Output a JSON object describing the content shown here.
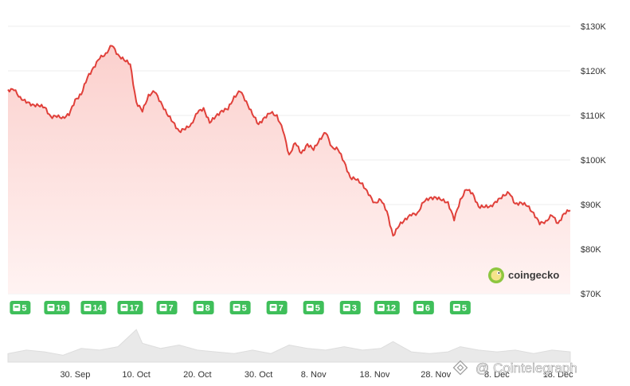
{
  "colors": {
    "line": "#e0403a",
    "area_top": "#fbd0cd",
    "area_bottom": "#fff3f2",
    "badge": "#3fbf5a",
    "grid": "#eeeeee",
    "volume": "#e9e9e9"
  },
  "branding": {
    "logo_icon": "gecko-icon",
    "logo_text": "coingecko",
    "watermark_icon": "binance-icon",
    "watermark_text": "@ Cointelegraph"
  },
  "chart_data": {
    "type": "area",
    "y_tick_labels": [
      "$130K",
      "$120K",
      "$110K",
      "$100K",
      "$90K",
      "$80K",
      "$70K"
    ],
    "y_ticks": [
      130000,
      120000,
      110000,
      100000,
      90000,
      80000,
      70000
    ],
    "ylim": [
      70000,
      130000
    ],
    "x_tick_labels": [
      "30. Sep",
      "10. Oct",
      "20. Oct",
      "30. Oct",
      "8. Nov",
      "18. Nov",
      "28. Nov",
      "8. Dec",
      "18. Dec"
    ],
    "x_ticks": [
      "2025-09-30",
      "2025-10-10",
      "2025-10-20",
      "2025-10-30",
      "2025-11-08",
      "2025-11-18",
      "2025-11-28",
      "2025-12-08",
      "2025-12-18"
    ],
    "xlim": [
      "2025-09-19",
      "2025-12-20"
    ],
    "grid": true,
    "series": [
      {
        "x": [
          "2025-09-19",
          "2025-09-20",
          "2025-09-21",
          "2025-09-22",
          "2025-09-23",
          "2025-09-24",
          "2025-09-25",
          "2025-09-26",
          "2025-09-27",
          "2025-09-28",
          "2025-09-29",
          "2025-09-30",
          "2025-10-01",
          "2025-10-02",
          "2025-10-03",
          "2025-10-04",
          "2025-10-05",
          "2025-10-06",
          "2025-10-07",
          "2025-10-08",
          "2025-10-09",
          "2025-10-10",
          "2025-10-11",
          "2025-10-12",
          "2025-10-13",
          "2025-10-14",
          "2025-10-15",
          "2025-10-16",
          "2025-10-17",
          "2025-10-18",
          "2025-10-19",
          "2025-10-20",
          "2025-10-21",
          "2025-10-22",
          "2025-10-23",
          "2025-10-24",
          "2025-10-25",
          "2025-10-26",
          "2025-10-27",
          "2025-10-28",
          "2025-10-29",
          "2025-10-30",
          "2025-10-31",
          "2025-11-01",
          "2025-11-02",
          "2025-11-03",
          "2025-11-04",
          "2025-11-05",
          "2025-11-06",
          "2025-11-07",
          "2025-11-08",
          "2025-11-09",
          "2025-11-10",
          "2025-11-11",
          "2025-11-12",
          "2025-11-13",
          "2025-11-14",
          "2025-11-15",
          "2025-11-16",
          "2025-11-17",
          "2025-11-18",
          "2025-11-19",
          "2025-11-20",
          "2025-11-21",
          "2025-11-22",
          "2025-11-23",
          "2025-11-24",
          "2025-11-25",
          "2025-11-26",
          "2025-11-27",
          "2025-11-28",
          "2025-11-29",
          "2025-11-30",
          "2025-12-01",
          "2025-12-02",
          "2025-12-03",
          "2025-12-04",
          "2025-12-05",
          "2025-12-06",
          "2025-12-07",
          "2025-12-08",
          "2025-12-09",
          "2025-12-10",
          "2025-12-11",
          "2025-12-12",
          "2025-12-13",
          "2025-12-14",
          "2025-12-15",
          "2025-12-16",
          "2025-12-17",
          "2025-12-18",
          "2025-12-19",
          "2025-12-20"
        ],
        "y": [
          115800,
          115600,
          114200,
          112800,
          112500,
          112200,
          111800,
          109800,
          109600,
          109700,
          110000,
          113600,
          114700,
          118500,
          120800,
          122700,
          124000,
          125600,
          123700,
          122400,
          121500,
          113000,
          110800,
          114700,
          115200,
          113100,
          110300,
          108500,
          106500,
          106800,
          108200,
          110500,
          111700,
          108300,
          109800,
          111100,
          111300,
          114300,
          115300,
          113200,
          110200,
          108000,
          109600,
          110500,
          110100,
          106500,
          101200,
          103800,
          101500,
          103600,
          102200,
          104800,
          106000,
          103000,
          102300,
          99600,
          96100,
          95500,
          94800,
          92100,
          90500,
          91000,
          88500,
          83000,
          85200,
          86900,
          87500,
          88200,
          90500,
          91500,
          91600,
          90900,
          90600,
          86400,
          91200,
          93300,
          92600,
          89500,
          89400,
          89800,
          90500,
          92200,
          92500,
          90200,
          90400,
          89600,
          88200,
          85500,
          86400,
          87500,
          85800,
          88000,
          88700
        ]
      }
    ],
    "event_badges": [
      {
        "x": "2025-09-21",
        "count": "5"
      },
      {
        "x": "2025-09-27",
        "count": "19"
      },
      {
        "x": "2025-10-03",
        "count": "14"
      },
      {
        "x": "2025-10-09",
        "count": "17"
      },
      {
        "x": "2025-10-15",
        "count": "7"
      },
      {
        "x": "2025-10-21",
        "count": "8"
      },
      {
        "x": "2025-10-27",
        "count": "5"
      },
      {
        "x": "2025-11-02",
        "count": "7"
      },
      {
        "x": "2025-11-08",
        "count": "5"
      },
      {
        "x": "2025-11-14",
        "count": "3"
      },
      {
        "x": "2025-11-20",
        "count": "12"
      },
      {
        "x": "2025-11-26",
        "count": "6"
      },
      {
        "x": "2025-12-02",
        "count": "5"
      }
    ],
    "volume": [
      {
        "x": "2025-09-19",
        "v": 0.25
      },
      {
        "x": "2025-09-22",
        "v": 0.35
      },
      {
        "x": "2025-09-25",
        "v": 0.3
      },
      {
        "x": "2025-09-28",
        "v": 0.2
      },
      {
        "x": "2025-10-01",
        "v": 0.4
      },
      {
        "x": "2025-10-04",
        "v": 0.35
      },
      {
        "x": "2025-10-07",
        "v": 0.45
      },
      {
        "x": "2025-10-10",
        "v": 0.95
      },
      {
        "x": "2025-10-11",
        "v": 0.55
      },
      {
        "x": "2025-10-14",
        "v": 0.4
      },
      {
        "x": "2025-10-17",
        "v": 0.5
      },
      {
        "x": "2025-10-20",
        "v": 0.35
      },
      {
        "x": "2025-10-23",
        "v": 0.3
      },
      {
        "x": "2025-10-26",
        "v": 0.25
      },
      {
        "x": "2025-10-29",
        "v": 0.35
      },
      {
        "x": "2025-11-01",
        "v": 0.25
      },
      {
        "x": "2025-11-04",
        "v": 0.5
      },
      {
        "x": "2025-11-07",
        "v": 0.4
      },
      {
        "x": "2025-11-10",
        "v": 0.35
      },
      {
        "x": "2025-11-13",
        "v": 0.45
      },
      {
        "x": "2025-11-16",
        "v": 0.35
      },
      {
        "x": "2025-11-19",
        "v": 0.4
      },
      {
        "x": "2025-11-21",
        "v": 0.6
      },
      {
        "x": "2025-11-24",
        "v": 0.3
      },
      {
        "x": "2025-11-27",
        "v": 0.25
      },
      {
        "x": "2025-11-30",
        "v": 0.3
      },
      {
        "x": "2025-12-02",
        "v": 0.45
      },
      {
        "x": "2025-12-05",
        "v": 0.35
      },
      {
        "x": "2025-12-08",
        "v": 0.3
      },
      {
        "x": "2025-12-11",
        "v": 0.35
      },
      {
        "x": "2025-12-14",
        "v": 0.25
      },
      {
        "x": "2025-12-17",
        "v": 0.35
      },
      {
        "x": "2025-12-20",
        "v": 0.3
      }
    ]
  }
}
